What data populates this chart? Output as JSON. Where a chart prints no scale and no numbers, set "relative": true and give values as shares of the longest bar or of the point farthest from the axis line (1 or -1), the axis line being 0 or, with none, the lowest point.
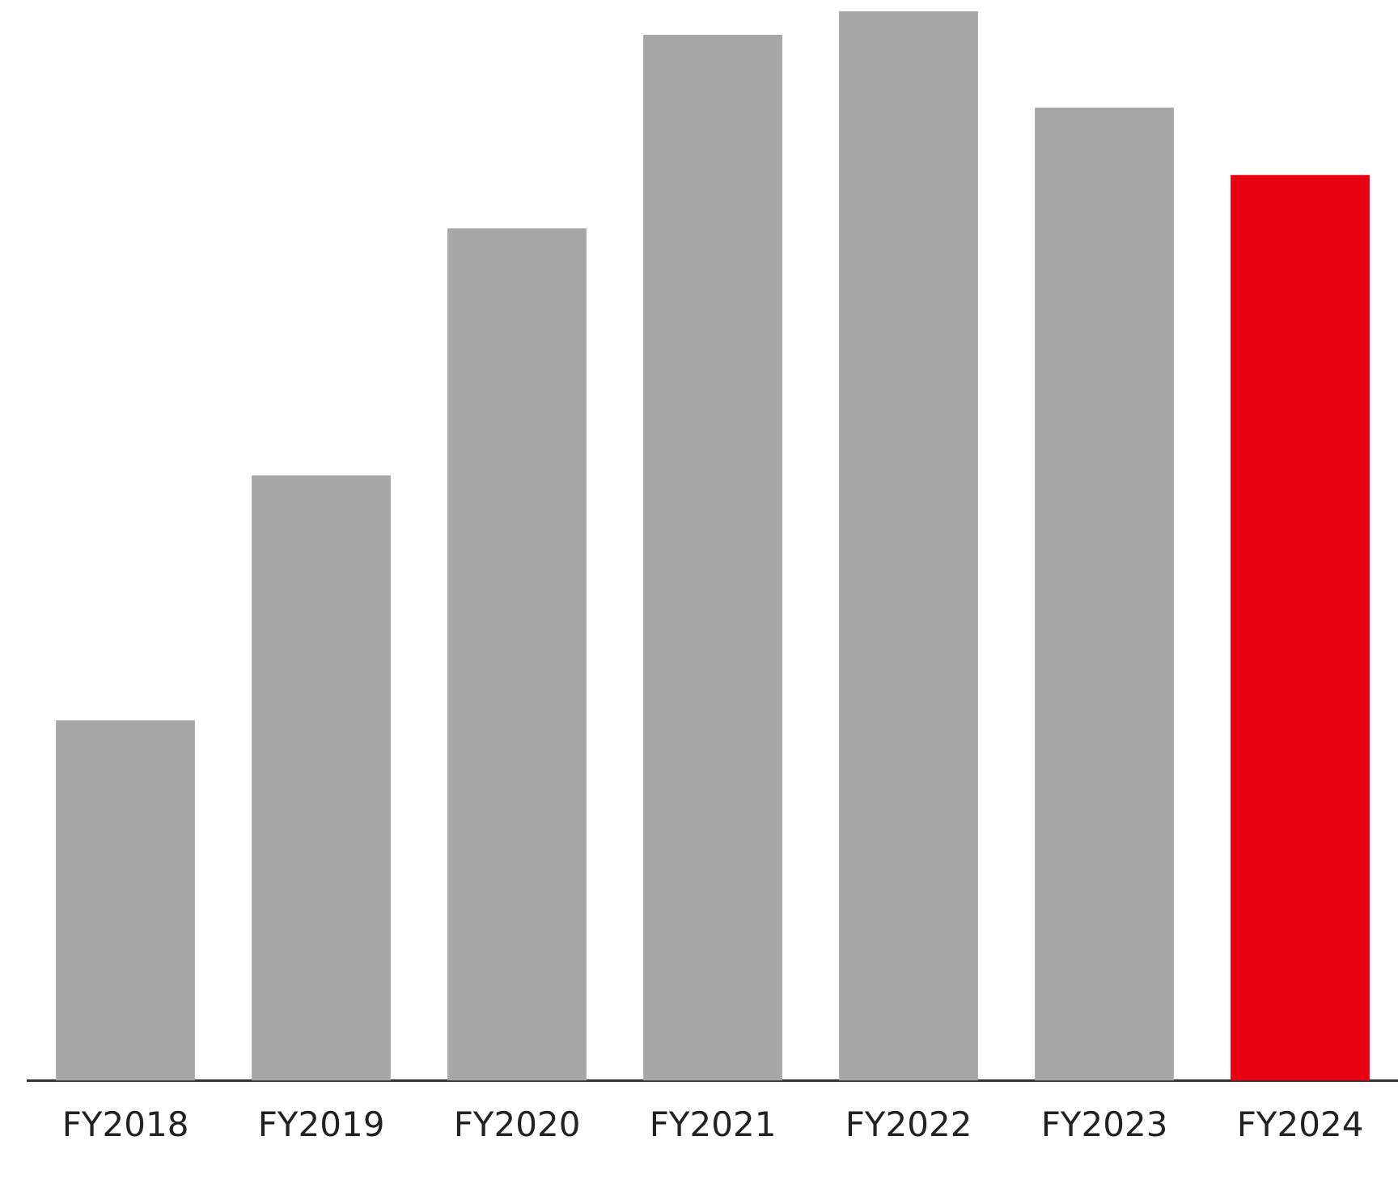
{
  "chart_data": {
    "type": "bar",
    "relative": true,
    "categories": [
      "FY2018",
      "FY2019",
      "FY2020",
      "FY2021",
      "FY2022",
      "FY2023",
      "FY2024"
    ],
    "values": [
      0.337,
      0.566,
      0.797,
      0.978,
      1,
      0.91,
      0.847
    ],
    "colors": [
      "#a6a6a6",
      "#a6a6a6",
      "#a6a6a6",
      "#a6a6a6",
      "#a6a6a6",
      "#a6a6a6",
      "#e60012"
    ]
  }
}
